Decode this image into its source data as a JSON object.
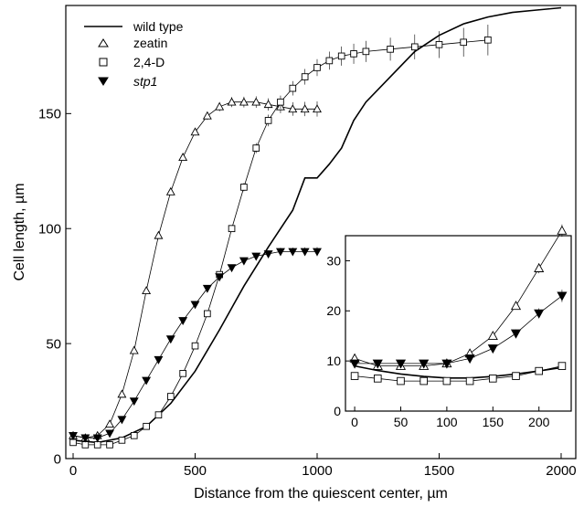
{
  "chart_data": [
    {
      "type": "line",
      "xlabel": "Distance from the quiescent center, µm",
      "ylabel": "Cell length, µm",
      "xlim": [
        -30,
        2060
      ],
      "ylim": [
        0,
        197
      ],
      "x_ticks": [
        "0",
        "500",
        "1000",
        "1500",
        "2000"
      ],
      "y_ticks": [
        "0",
        "50",
        "100",
        "150"
      ],
      "x_tick_values": [
        0,
        500,
        1000,
        1500,
        2000
      ],
      "y_tick_values": [
        0,
        50,
        100,
        150
      ],
      "grid": false,
      "legend_position": "top-left",
      "series": [
        {
          "name": "wild type",
          "marker": "none",
          "x": [
            0,
            100,
            200,
            300,
            400,
            500,
            600,
            700,
            800,
            900,
            950,
            1000,
            1050,
            1100,
            1150,
            1200,
            1300,
            1400,
            1500,
            1600,
            1700,
            1800,
            1900,
            2000
          ],
          "y": [
            8,
            7,
            9,
            14,
            24,
            38,
            56,
            75,
            92,
            108,
            122,
            122,
            128,
            135,
            147,
            155,
            166,
            177,
            184,
            189,
            192,
            194,
            195,
            196
          ]
        },
        {
          "name": "zeatin",
          "marker": "triangle-open",
          "x": [
            0,
            50,
            100,
            150,
            200,
            250,
            300,
            350,
            400,
            450,
            500,
            550,
            600,
            650,
            700,
            750,
            800,
            850,
            900,
            950,
            1000
          ],
          "y": [
            10,
            9,
            10,
            15,
            28,
            47,
            73,
            97,
            116,
            131,
            142,
            149,
            153,
            155,
            155,
            155,
            154,
            153,
            152,
            152,
            152
          ]
        },
        {
          "name": "2,4-D",
          "marker": "square-open",
          "x": [
            0,
            50,
            100,
            150,
            200,
            250,
            300,
            350,
            400,
            450,
            500,
            550,
            600,
            650,
            700,
            750,
            800,
            850,
            900,
            950,
            1000,
            1050,
            1100,
            1150,
            1200,
            1300,
            1400,
            1500,
            1600,
            1700
          ],
          "y": [
            7,
            6,
            6,
            6,
            8,
            10,
            14,
            19,
            27,
            37,
            49,
            63,
            80,
            100,
            118,
            135,
            147,
            155,
            161,
            166,
            170,
            173,
            175,
            176,
            177,
            178,
            179,
            180,
            181,
            182
          ]
        },
        {
          "name": "stp1",
          "marker": "triangle-down-filled",
          "x": [
            0,
            50,
            100,
            150,
            200,
            250,
            300,
            350,
            400,
            450,
            500,
            550,
            600,
            650,
            700,
            750,
            800,
            850,
            900,
            950,
            1000
          ],
          "y": [
            10,
            9,
            9,
            11,
            17,
            25,
            34,
            43,
            52,
            60,
            67,
            74,
            79,
            83,
            86,
            88,
            89,
            90,
            90,
            90,
            90
          ]
        }
      ]
    },
    {
      "type": "line",
      "xlabel": "",
      "ylabel": "",
      "xlim": [
        -10,
        235
      ],
      "ylim": [
        0,
        35
      ],
      "x_ticks": [
        "0",
        "50",
        "100",
        "150",
        "200"
      ],
      "y_ticks": [
        "0",
        "10",
        "20",
        "30"
      ],
      "x_tick_values": [
        0,
        50,
        100,
        150,
        200
      ],
      "y_tick_values": [
        0,
        10,
        20,
        30
      ],
      "grid": false,
      "series": [
        {
          "name": "wild type",
          "marker": "none",
          "x": [
            0,
            25,
            50,
            75,
            100,
            125,
            150,
            175,
            200,
            225
          ],
          "y": [
            9,
            8.1,
            7.4,
            6.9,
            6.6,
            6.6,
            6.9,
            7.4,
            8.0,
            8.7
          ]
        },
        {
          "name": "zeatin",
          "marker": "triangle-open",
          "x": [
            0,
            25,
            50,
            75,
            100,
            125,
            150,
            175,
            200,
            225
          ],
          "y": [
            10.5,
            9.0,
            9.0,
            9.0,
            9.5,
            11.5,
            15.0,
            21.0,
            28.5,
            36.0
          ]
        },
        {
          "name": "2,4-D",
          "marker": "square-open",
          "x": [
            0,
            25,
            50,
            75,
            100,
            125,
            150,
            175,
            200,
            225
          ],
          "y": [
            7.0,
            6.5,
            6.0,
            6.0,
            6.0,
            6.0,
            6.5,
            7.0,
            8.0,
            9.0
          ]
        },
        {
          "name": "stp1",
          "marker": "triangle-down-filled",
          "x": [
            0,
            25,
            50,
            75,
            100,
            125,
            150,
            175,
            200,
            225
          ],
          "y": [
            9.5,
            9.5,
            9.5,
            9.5,
            9.5,
            10.5,
            12.5,
            15.5,
            19.5,
            23.0
          ]
        }
      ]
    }
  ]
}
